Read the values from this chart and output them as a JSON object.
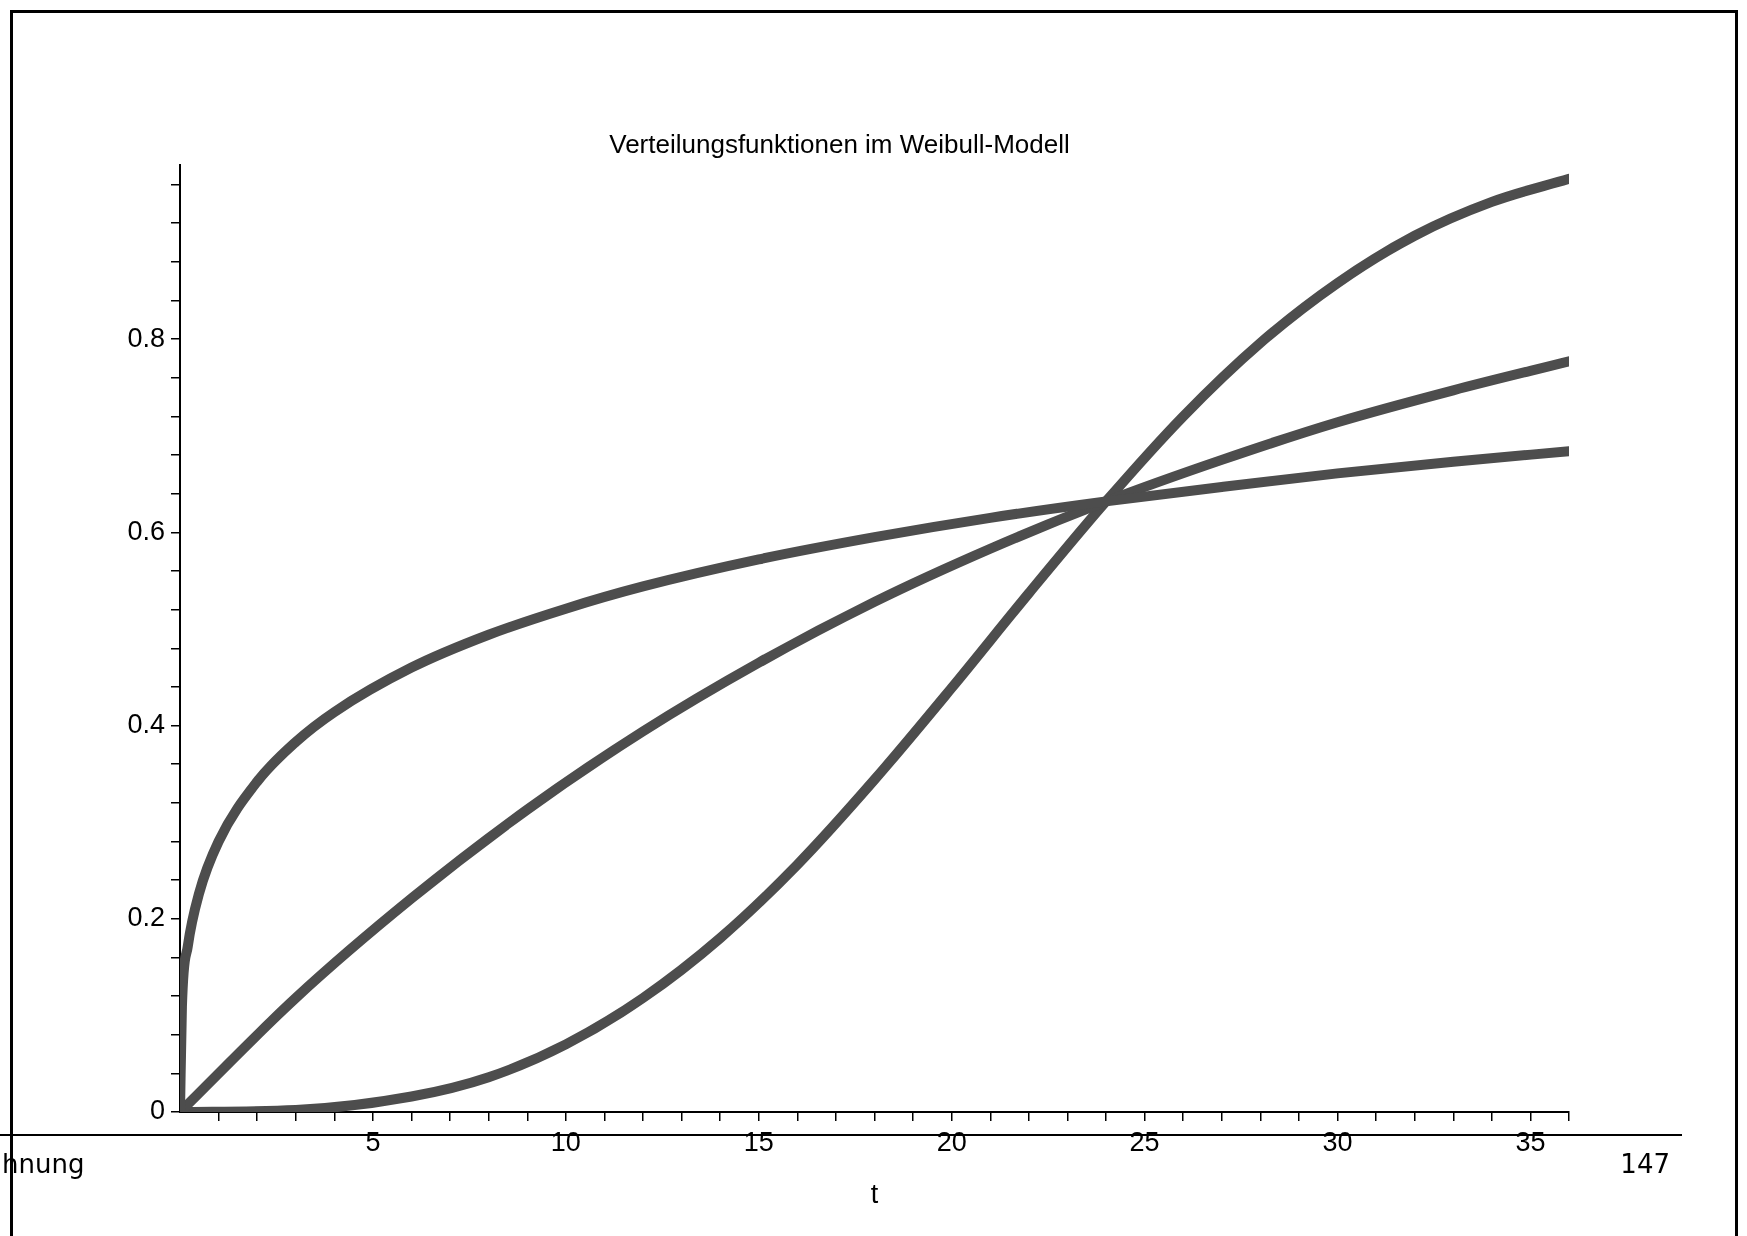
{
  "chart_data": {
    "type": "line",
    "title": "Verteilungsfunktionen im Weibull-Modell",
    "xlabel": "t",
    "xlim": [
      0,
      36
    ],
    "xticks": [
      {
        "value": 1,
        "label": null
      },
      {
        "value": 2,
        "label": null
      },
      {
        "value": 3,
        "label": null
      },
      {
        "value": 4,
        "label": null
      },
      5,
      {
        "value": 6,
        "label": null
      },
      {
        "value": 7,
        "label": null
      },
      {
        "value": 8,
        "label": null
      },
      {
        "value": 9,
        "label": null
      },
      10,
      {
        "value": 11,
        "label": null
      },
      {
        "value": 12,
        "label": null
      },
      {
        "value": 13,
        "label": null
      },
      {
        "value": 14,
        "label": null
      },
      15,
      {
        "value": 16,
        "label": null
      },
      {
        "value": 17,
        "label": null
      },
      {
        "value": 18,
        "label": null
      },
      {
        "value": 19,
        "label": null
      },
      20,
      {
        "value": 21,
        "label": null
      },
      {
        "value": 22,
        "label": null
      },
      {
        "value": 23,
        "label": null
      },
      {
        "value": 24,
        "label": null
      },
      25,
      {
        "value": 26,
        "label": null
      },
      {
        "value": 27,
        "label": null
      },
      {
        "value": 28,
        "label": null
      },
      {
        "value": 29,
        "label": null
      },
      30,
      {
        "value": 31,
        "label": null
      },
      {
        "value": 32,
        "label": null
      },
      {
        "value": 33,
        "label": null
      },
      {
        "value": 34,
        "label": null
      },
      35,
      {
        "value": 36,
        "label": null
      }
    ],
    "ylim": [
      0,
      0.98
    ],
    "yticks": [
      0,
      {
        "value": 0.04,
        "label": null
      },
      {
        "value": 0.08,
        "label": null
      },
      {
        "value": 0.12,
        "label": null
      },
      {
        "value": 0.16,
        "label": null
      },
      0.2,
      {
        "value": 0.24,
        "label": null
      },
      {
        "value": 0.28,
        "label": null
      },
      {
        "value": 0.32,
        "label": null
      },
      {
        "value": 0.36,
        "label": null
      },
      0.4,
      {
        "value": 0.44,
        "label": null
      },
      {
        "value": 0.48,
        "label": null
      },
      {
        "value": 0.52,
        "label": null
      },
      {
        "value": 0.56,
        "label": null
      },
      0.6,
      {
        "value": 0.64,
        "label": null
      },
      {
        "value": 0.68,
        "label": null
      },
      {
        "value": 0.72,
        "label": null
      },
      {
        "value": 0.76,
        "label": null
      },
      0.8,
      {
        "value": 0.84,
        "label": null
      },
      {
        "value": 0.88,
        "label": null
      },
      {
        "value": 0.92,
        "label": null
      },
      {
        "value": 0.96,
        "label": null
      }
    ],
    "grid": false,
    "legend": false,
    "marker": "none",
    "line_style": "solid",
    "series": [
      {
        "color": "#4d4d4d",
        "x": [
          0,
          0.05,
          0.2,
          0.5,
          1,
          2,
          3,
          4,
          6,
          8,
          10,
          12,
          15,
          18,
          21,
          24,
          27,
          30,
          33,
          36
        ],
        "values": [
          0,
          0.109,
          0.171,
          0.227,
          0.28,
          0.342,
          0.383,
          0.414,
          0.46,
          0.494,
          0.521,
          0.544,
          0.572,
          0.595,
          0.615,
          0.632,
          0.647,
          0.661,
          0.673,
          0.684
        ]
      },
      {
        "color": "#4d4d4d",
        "x": [
          0,
          3,
          6,
          9,
          12,
          15,
          18,
          21,
          24,
          27,
          30,
          33,
          36
        ],
        "values": [
          0,
          0.118,
          0.221,
          0.313,
          0.394,
          0.465,
          0.528,
          0.583,
          0.632,
          0.675,
          0.714,
          0.747,
          0.777
        ]
      },
      {
        "color": "#4d4d4d",
        "x": [
          0,
          3,
          6,
          8,
          10,
          12,
          14,
          16,
          18,
          20,
          22,
          24,
          26,
          28,
          30,
          32,
          34,
          36
        ],
        "values": [
          0,
          0.002,
          0.016,
          0.036,
          0.07,
          0.118,
          0.18,
          0.256,
          0.344,
          0.439,
          0.537,
          0.632,
          0.72,
          0.796,
          0.858,
          0.907,
          0.942,
          0.966
        ]
      }
    ],
    "annotations": [
      "hnung",
      "147"
    ]
  }
}
